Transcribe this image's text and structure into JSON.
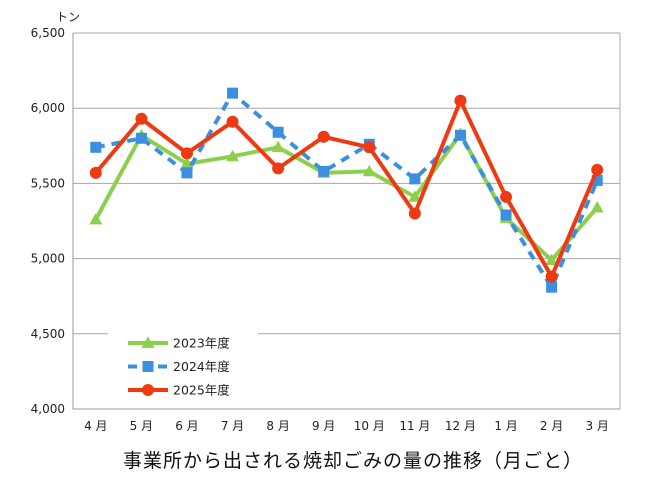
{
  "chart_data": {
    "type": "line",
    "title": "事業所から出される焼却ごみの量の推移（月ごと）",
    "ylabel": "トン",
    "xlabel": "",
    "ylim": [
      4000,
      6500
    ],
    "yticks": [
      4000,
      4500,
      5000,
      5500,
      6000,
      6500
    ],
    "ytick_labels": [
      "4,000",
      "4,500",
      "5,000",
      "5,500",
      "6,000",
      "6,500"
    ],
    "categories": [
      "4月",
      "5月",
      "6月",
      "7月",
      "8月",
      "9月",
      "10月",
      "11月",
      "12月",
      "1月",
      "2月",
      "3月"
    ],
    "grid": true,
    "legend_position": "bottom-left",
    "series": [
      {
        "name": "2023年度",
        "color": "#8ccf4d",
        "marker": "triangle",
        "dash": false,
        "values": [
          5260,
          5820,
          5630,
          5680,
          5740,
          5570,
          5580,
          5410,
          5830,
          5270,
          4990,
          5340
        ]
      },
      {
        "name": "2024年度",
        "color": "#3a8fe0",
        "marker": "square",
        "dash": true,
        "values": [
          5740,
          5800,
          5570,
          6100,
          5840,
          5580,
          5760,
          5530,
          5820,
          5290,
          4810,
          5520
        ]
      },
      {
        "name": "2025年度",
        "color": "#ee3a12",
        "marker": "circle",
        "dash": false,
        "values": [
          5570,
          5930,
          5700,
          5910,
          5600,
          5810,
          5740,
          5300,
          6050,
          5410,
          4880,
          5590
        ]
      }
    ]
  }
}
